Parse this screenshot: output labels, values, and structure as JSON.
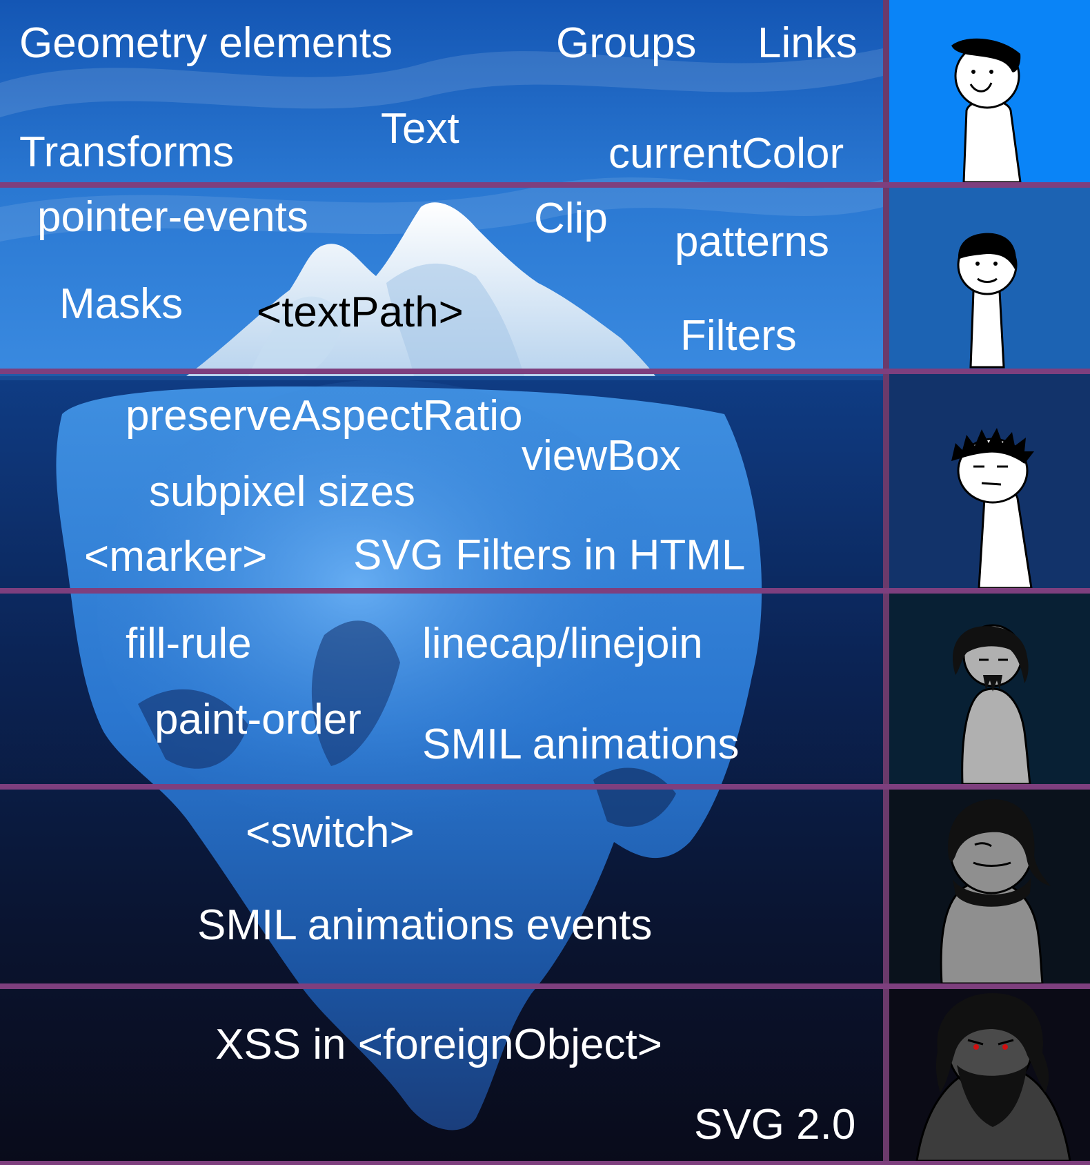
{
  "tiers": [
    {
      "labels": [
        "Geometry elements",
        "Groups",
        "Links",
        "Transforms",
        "Text",
        "currentColor"
      ],
      "panel_color": "#0a84f7"
    },
    {
      "labels": [
        "pointer-events",
        "Clip",
        "patterns",
        "Masks",
        "<textPath>",
        "Filters"
      ],
      "panel_color": "#1c63b3"
    },
    {
      "labels": [
        "preserveAspectRatio",
        "viewBox",
        "subpixel sizes",
        "<marker>",
        "SVG Filters in HTML"
      ],
      "panel_color": "#12336a"
    },
    {
      "labels": [
        "fill-rule",
        "linecap/linejoin",
        "paint-order",
        "SMIL animations"
      ],
      "panel_color": "#082034"
    },
    {
      "labels": [
        "<switch>",
        "SMIL animations events"
      ],
      "panel_color": "#0a121c"
    },
    {
      "labels": [
        "XSS in <foreignObject>",
        "SVG 2.0"
      ],
      "panel_color": "#0b0b16"
    }
  ],
  "colors": {
    "separator": "#7e3f7e",
    "sky": "#1a66c8",
    "water_deep": "#0b0d1c",
    "ice": "#e8f2fb"
  },
  "icons": [
    "person-tier-1-icon",
    "person-tier-2-icon",
    "person-tier-3-icon",
    "person-tier-4-icon",
    "person-tier-5-icon",
    "person-tier-6-icon"
  ]
}
